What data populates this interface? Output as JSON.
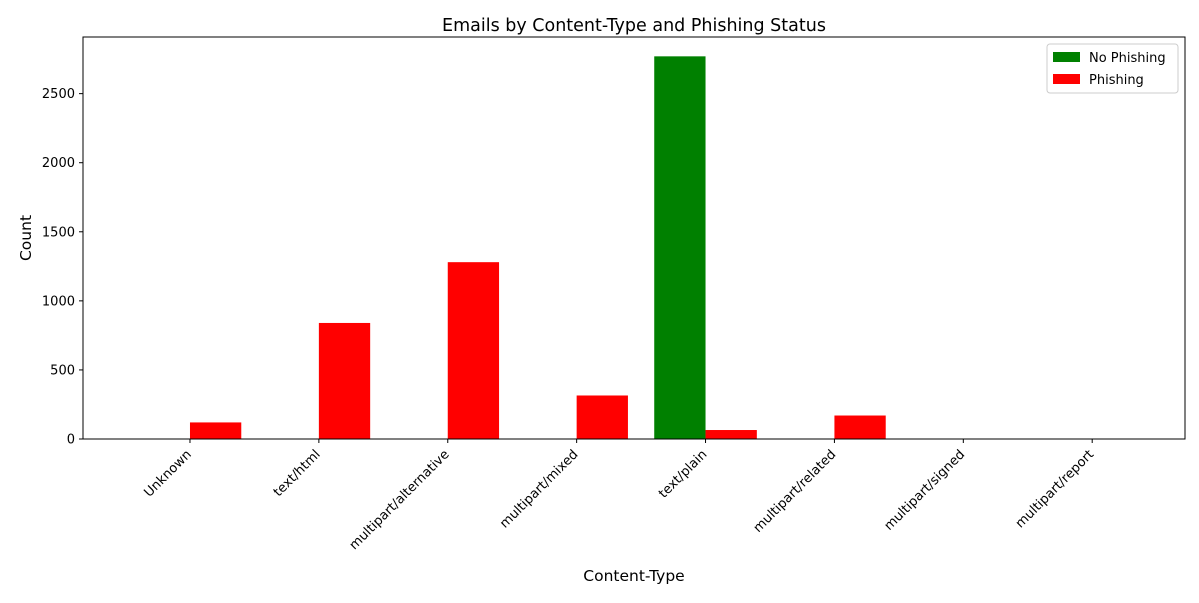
{
  "chart_data": {
    "type": "bar",
    "title": "Emails by Content-Type and Phishing Status",
    "xlabel": "Content-Type",
    "ylabel": "Count",
    "categories": [
      "Unknown",
      "text/html",
      "multipart/alternative",
      "multipart/mixed",
      "text/plain",
      "multipart/related",
      "multipart/signed",
      "multipart/report"
    ],
    "series": [
      {
        "name": "No Phishing",
        "color": "#008000",
        "values": [
          0,
          0,
          0,
          0,
          2770,
          0,
          0,
          0
        ]
      },
      {
        "name": "Phishing",
        "color": "#ff0000",
        "values": [
          120,
          840,
          1280,
          315,
          65,
          170,
          3,
          1
        ]
      }
    ],
    "ylim": [
      0,
      2910
    ],
    "yticks": [
      0,
      500,
      1000,
      1500,
      2000,
      2500
    ],
    "legend_position": "top-right",
    "grid": false
  }
}
